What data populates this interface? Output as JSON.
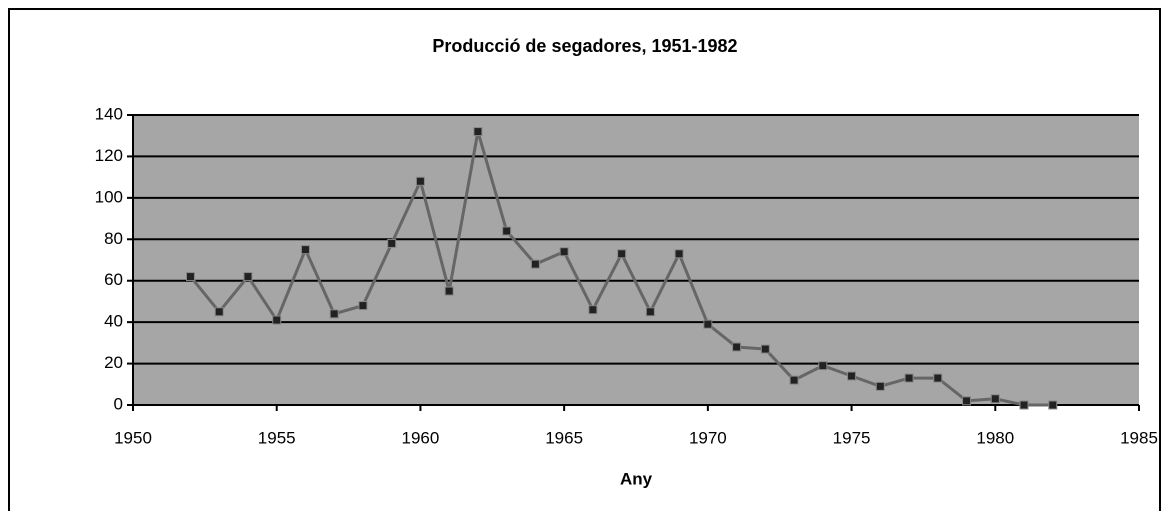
{
  "chart_data": {
    "type": "line",
    "title": "Producció de segadores, 1951-1982",
    "xlabel": "Any",
    "x": [
      1952,
      1953,
      1954,
      1955,
      1956,
      1957,
      1958,
      1959,
      1960,
      1961,
      1962,
      1963,
      1964,
      1965,
      1966,
      1967,
      1968,
      1969,
      1970,
      1971,
      1972,
      1973,
      1974,
      1975,
      1976,
      1977,
      1978,
      1979,
      1980,
      1981,
      1982
    ],
    "values": [
      62,
      45,
      62,
      41,
      75,
      44,
      48,
      78,
      108,
      55,
      132,
      84,
      68,
      74,
      46,
      73,
      45,
      73,
      39,
      28,
      27,
      12,
      19,
      14,
      9,
      13,
      13,
      2,
      3,
      0,
      0
    ],
    "color": "#666666",
    "marker_color": "#222222",
    "plot_background": "#a6a6a6",
    "xlim": [
      1950,
      1985
    ],
    "xticks": [
      1950,
      1955,
      1960,
      1965,
      1970,
      1975,
      1980,
      1985
    ],
    "ylim": [
      0,
      140
    ],
    "yticks": [
      0,
      20,
      40,
      60,
      80,
      100,
      120,
      140
    ],
    "grid": true
  }
}
